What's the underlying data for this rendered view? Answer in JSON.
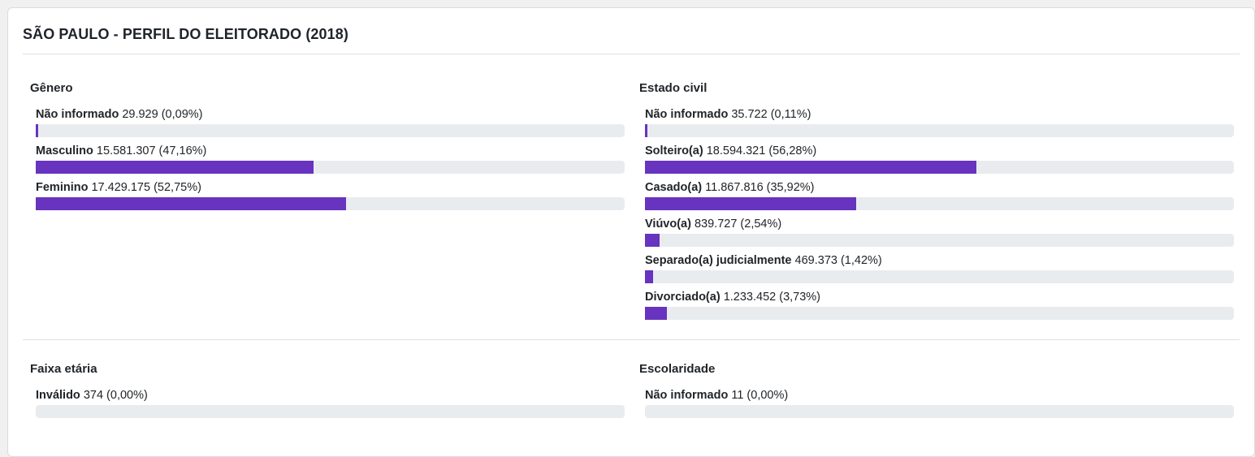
{
  "page": {
    "title": "SÃO PAULO - PERFIL DO ELEITORADO (2018)"
  },
  "colors": {
    "accent": "#6733bf",
    "track": "#e9ecef"
  },
  "chart_data": [
    {
      "type": "bar",
      "orientation": "horizontal",
      "id": "genero",
      "row": 0,
      "col": 0,
      "title": "Gênero",
      "categories": [
        "Não informado",
        "Masculino",
        "Feminino"
      ],
      "values": [
        29929,
        15581307,
        17429175
      ],
      "value_labels": [
        "29.929",
        "15.581.307",
        "17.429.175"
      ],
      "pct": [
        0.09,
        47.16,
        52.75
      ],
      "pct_labels": [
        "0,09%",
        "47,16%",
        "52,75%"
      ],
      "xlim": [
        0,
        100
      ],
      "grid": false,
      "legend": false
    },
    {
      "type": "bar",
      "orientation": "horizontal",
      "id": "estado-civil",
      "row": 0,
      "col": 1,
      "title": "Estado civil",
      "categories": [
        "Não informado",
        "Solteiro(a)",
        "Casado(a)",
        "Viúvo(a)",
        "Separado(a) judicialmente",
        "Divorciado(a)"
      ],
      "values": [
        35722,
        18594321,
        11867816,
        839727,
        469373,
        1233452
      ],
      "value_labels": [
        "35.722",
        "18.594.321",
        "11.867.816",
        "839.727",
        "469.373",
        "1.233.452"
      ],
      "pct": [
        0.11,
        56.28,
        35.92,
        2.54,
        1.42,
        3.73
      ],
      "pct_labels": [
        "0,11%",
        "56,28%",
        "35,92%",
        "2,54%",
        "1,42%",
        "3,73%"
      ],
      "xlim": [
        0,
        100
      ],
      "grid": false,
      "legend": false
    },
    {
      "type": "bar",
      "orientation": "horizontal",
      "id": "faixa-etaria",
      "row": 1,
      "col": 0,
      "title": "Faixa etária",
      "categories": [
        "Inválido"
      ],
      "values": [
        374
      ],
      "value_labels": [
        "374"
      ],
      "pct": [
        0
      ],
      "pct_labels": [
        "0,00%"
      ],
      "xlim": [
        0,
        100
      ],
      "grid": false,
      "legend": false
    },
    {
      "type": "bar",
      "orientation": "horizontal",
      "id": "escolaridade",
      "row": 1,
      "col": 1,
      "title": "Escolaridade",
      "categories": [
        "Não informado"
      ],
      "values": [
        11
      ],
      "value_labels": [
        "11"
      ],
      "pct": [
        0
      ],
      "pct_labels": [
        "0,00%"
      ],
      "xlim": [
        0,
        100
      ],
      "grid": false,
      "legend": false
    }
  ]
}
